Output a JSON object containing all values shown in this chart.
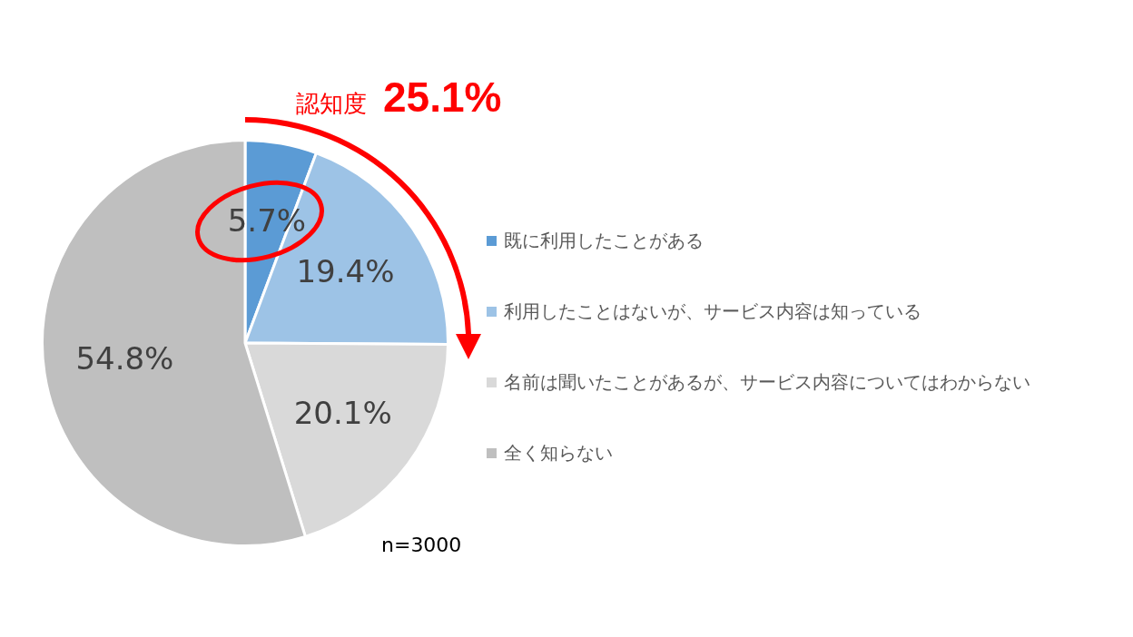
{
  "chart_data": {
    "type": "pie",
    "categories": [
      "既に利用したことがある",
      "利用したことはないが、サービス内容は知っている",
      "名前は聞いたことがあるが、サービス内容についてはわからない",
      "全く知らない"
    ],
    "values": [
      5.7,
      19.4,
      20.1,
      54.8
    ],
    "value_labels": [
      "5.7%",
      "19.4%",
      "20.1%",
      "54.8%"
    ],
    "colors": [
      "#5b9bd5",
      "#9dc3e6",
      "#d9d9d9",
      "#bfbfbf"
    ],
    "legend": "right",
    "annotations": [
      "認知度 25.1%",
      "n=3000"
    ]
  }
}
